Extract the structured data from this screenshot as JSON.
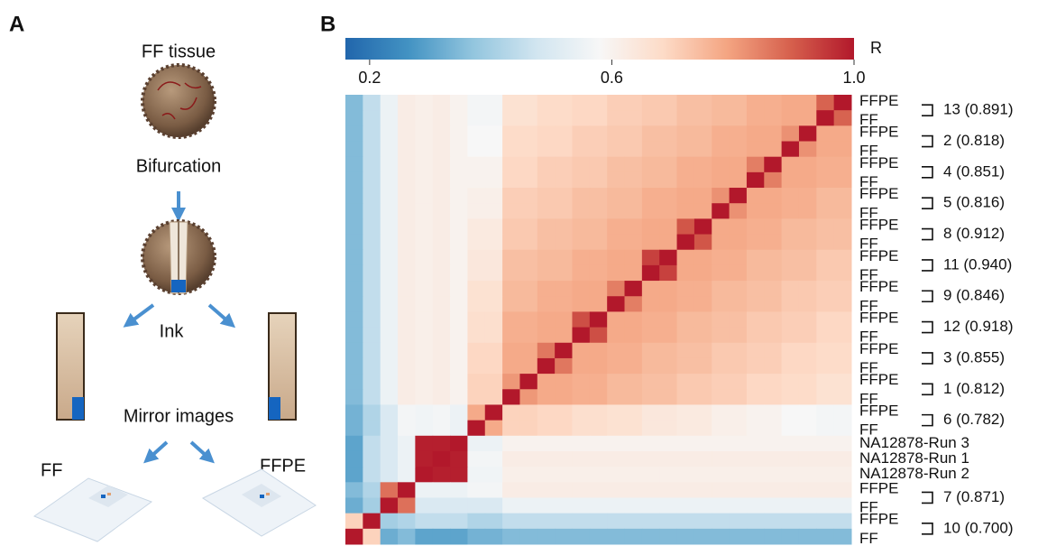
{
  "panel_a": {
    "label": "A",
    "tissue": "FF tissue",
    "step": "Bifurcation",
    "ink": "Ink",
    "mirror": "Mirror images",
    "left_slide": "FF",
    "right_slide": "FFPE"
  },
  "chart_data": {
    "type": "heatmap",
    "panel_label": "B",
    "colorbar_title": "R",
    "zlim": [
      0.16,
      1
    ],
    "zticks": [
      0.2,
      0.6,
      {
        "value": 1,
        "label": "1.0"
      }
    ],
    "colorscale": [
      "#2166ac",
      "#4393c3",
      "#92c5de",
      "#d1e5f0",
      "#f7f7f7",
      "#fddbc7",
      "#f4a582",
      "#d6604d",
      "#b2182b"
    ],
    "row_labels": [
      "FFPE",
      "FF",
      "FFPE",
      "FF",
      "FFPE",
      "FF",
      "FFPE",
      "FF",
      "FFPE",
      "FF",
      "FFPE",
      "FF",
      "FFPE",
      "FF",
      "FFPE",
      "FF",
      "FFPE",
      "FF",
      "FFPE",
      "FF",
      "FFPE",
      "FF",
      "NA12878-Run 3",
      "NA12878-Run 1",
      "NA12878-Run 2",
      "FFPE",
      "FF",
      "FFPE",
      "FF"
    ],
    "pair_labels": [
      "13 (0.891)",
      "2 (0.818)",
      "4 (0.851)",
      "5 (0.816)",
      "8 (0.912)",
      "11 (0.940)",
      "9 (0.846)",
      "12 (0.918)",
      "3 (0.855)",
      "1 (0.812)",
      "6 (0.782)",
      "7 (0.871)",
      "10 (0.700)"
    ],
    "values": [
      [
        0.35,
        0.45,
        0.55,
        0.62,
        0.61,
        0.62,
        0.6,
        0.57,
        0.57,
        0.66,
        0.66,
        0.68,
        0.68,
        0.69,
        0.69,
        0.71,
        0.71,
        0.72,
        0.72,
        0.74,
        0.74,
        0.75,
        0.75,
        0.77,
        0.77,
        0.78,
        0.78,
        0.89,
        1
      ],
      [
        0.35,
        0.45,
        0.55,
        0.62,
        0.61,
        0.62,
        0.6,
        0.57,
        0.57,
        0.66,
        0.66,
        0.68,
        0.68,
        0.69,
        0.69,
        0.71,
        0.71,
        0.72,
        0.72,
        0.74,
        0.74,
        0.75,
        0.75,
        0.77,
        0.77,
        0.78,
        0.78,
        1,
        0.89
      ],
      [
        0.35,
        0.45,
        0.55,
        0.62,
        0.61,
        0.62,
        0.6,
        0.58,
        0.58,
        0.68,
        0.68,
        0.69,
        0.69,
        0.71,
        0.71,
        0.72,
        0.72,
        0.74,
        0.74,
        0.75,
        0.75,
        0.77,
        0.77,
        0.78,
        0.78,
        0.82,
        1,
        0.78,
        0.78
      ],
      [
        0.35,
        0.45,
        0.55,
        0.62,
        0.61,
        0.62,
        0.6,
        0.58,
        0.58,
        0.68,
        0.68,
        0.69,
        0.69,
        0.71,
        0.71,
        0.72,
        0.72,
        0.74,
        0.74,
        0.75,
        0.75,
        0.77,
        0.77,
        0.78,
        0.78,
        1,
        0.82,
        0.78,
        0.78
      ],
      [
        0.35,
        0.45,
        0.55,
        0.62,
        0.61,
        0.62,
        0.6,
        0.6,
        0.6,
        0.69,
        0.69,
        0.71,
        0.71,
        0.72,
        0.72,
        0.74,
        0.74,
        0.75,
        0.75,
        0.77,
        0.77,
        0.78,
        0.78,
        0.85,
        1,
        0.78,
        0.78,
        0.77,
        0.77
      ],
      [
        0.35,
        0.45,
        0.55,
        0.62,
        0.61,
        0.62,
        0.6,
        0.6,
        0.6,
        0.69,
        0.69,
        0.71,
        0.71,
        0.72,
        0.72,
        0.74,
        0.74,
        0.75,
        0.75,
        0.77,
        0.77,
        0.78,
        0.78,
        1,
        0.85,
        0.78,
        0.78,
        0.77,
        0.77
      ],
      [
        0.35,
        0.45,
        0.55,
        0.62,
        0.61,
        0.62,
        0.6,
        0.61,
        0.61,
        0.71,
        0.71,
        0.72,
        0.72,
        0.74,
        0.74,
        0.75,
        0.75,
        0.77,
        0.77,
        0.78,
        0.78,
        0.82,
        1,
        0.78,
        0.78,
        0.77,
        0.77,
        0.75,
        0.75
      ],
      [
        0.35,
        0.45,
        0.55,
        0.62,
        0.61,
        0.62,
        0.6,
        0.61,
        0.61,
        0.71,
        0.71,
        0.72,
        0.72,
        0.74,
        0.74,
        0.75,
        0.75,
        0.77,
        0.77,
        0.78,
        0.78,
        1,
        0.82,
        0.78,
        0.78,
        0.77,
        0.77,
        0.75,
        0.75
      ],
      [
        0.35,
        0.45,
        0.55,
        0.62,
        0.61,
        0.62,
        0.6,
        0.63,
        0.63,
        0.72,
        0.72,
        0.74,
        0.74,
        0.75,
        0.75,
        0.77,
        0.77,
        0.78,
        0.78,
        0.91,
        1,
        0.78,
        0.78,
        0.77,
        0.77,
        0.75,
        0.75,
        0.74,
        0.74
      ],
      [
        0.35,
        0.45,
        0.55,
        0.62,
        0.61,
        0.62,
        0.6,
        0.63,
        0.63,
        0.72,
        0.72,
        0.74,
        0.74,
        0.75,
        0.75,
        0.77,
        0.77,
        0.78,
        0.78,
        1,
        0.91,
        0.78,
        0.78,
        0.77,
        0.77,
        0.75,
        0.75,
        0.74,
        0.74
      ],
      [
        0.35,
        0.45,
        0.55,
        0.62,
        0.61,
        0.62,
        0.6,
        0.64,
        0.64,
        0.74,
        0.74,
        0.75,
        0.75,
        0.77,
        0.77,
        0.78,
        0.78,
        0.94,
        1,
        0.78,
        0.78,
        0.77,
        0.77,
        0.75,
        0.75,
        0.74,
        0.74,
        0.72,
        0.72
      ],
      [
        0.35,
        0.45,
        0.55,
        0.62,
        0.61,
        0.62,
        0.6,
        0.64,
        0.64,
        0.74,
        0.74,
        0.75,
        0.75,
        0.77,
        0.77,
        0.78,
        0.78,
        1,
        0.94,
        0.78,
        0.78,
        0.77,
        0.77,
        0.75,
        0.75,
        0.74,
        0.74,
        0.72,
        0.72
      ],
      [
        0.35,
        0.45,
        0.55,
        0.62,
        0.61,
        0.62,
        0.6,
        0.66,
        0.66,
        0.75,
        0.75,
        0.77,
        0.77,
        0.78,
        0.78,
        0.85,
        1,
        0.78,
        0.78,
        0.77,
        0.77,
        0.75,
        0.75,
        0.74,
        0.74,
        0.72,
        0.72,
        0.71,
        0.71
      ],
      [
        0.35,
        0.45,
        0.55,
        0.62,
        0.61,
        0.62,
        0.6,
        0.66,
        0.66,
        0.75,
        0.75,
        0.77,
        0.77,
        0.78,
        0.78,
        1,
        0.85,
        0.78,
        0.78,
        0.77,
        0.77,
        0.75,
        0.75,
        0.74,
        0.74,
        0.72,
        0.72,
        0.71,
        0.71
      ],
      [
        0.35,
        0.45,
        0.55,
        0.62,
        0.61,
        0.62,
        0.6,
        0.67,
        0.67,
        0.77,
        0.77,
        0.78,
        0.78,
        0.92,
        1,
        0.78,
        0.78,
        0.77,
        0.77,
        0.75,
        0.75,
        0.74,
        0.74,
        0.72,
        0.72,
        0.71,
        0.71,
        0.69,
        0.69
      ],
      [
        0.35,
        0.45,
        0.55,
        0.62,
        0.61,
        0.62,
        0.6,
        0.67,
        0.67,
        0.77,
        0.77,
        0.78,
        0.78,
        1,
        0.92,
        0.78,
        0.78,
        0.77,
        0.77,
        0.75,
        0.75,
        0.74,
        0.74,
        0.72,
        0.72,
        0.71,
        0.71,
        0.69,
        0.69
      ],
      [
        0.35,
        0.45,
        0.55,
        0.62,
        0.61,
        0.62,
        0.6,
        0.69,
        0.69,
        0.78,
        0.78,
        0.86,
        1,
        0.78,
        0.78,
        0.77,
        0.77,
        0.75,
        0.75,
        0.74,
        0.74,
        0.72,
        0.72,
        0.71,
        0.71,
        0.69,
        0.69,
        0.68,
        0.68
      ],
      [
        0.35,
        0.45,
        0.55,
        0.62,
        0.61,
        0.62,
        0.6,
        0.69,
        0.69,
        0.78,
        0.78,
        1,
        0.86,
        0.78,
        0.78,
        0.77,
        0.77,
        0.75,
        0.75,
        0.74,
        0.74,
        0.72,
        0.72,
        0.71,
        0.71,
        0.69,
        0.69,
        0.68,
        0.68
      ],
      [
        0.35,
        0.45,
        0.55,
        0.62,
        0.61,
        0.62,
        0.6,
        0.7,
        0.7,
        0.81,
        1,
        0.78,
        0.78,
        0.77,
        0.77,
        0.75,
        0.75,
        0.74,
        0.74,
        0.72,
        0.72,
        0.71,
        0.71,
        0.69,
        0.69,
        0.68,
        0.68,
        0.66,
        0.66
      ],
      [
        0.35,
        0.45,
        0.55,
        0.62,
        0.61,
        0.62,
        0.6,
        0.7,
        0.7,
        1,
        0.81,
        0.78,
        0.78,
        0.77,
        0.77,
        0.75,
        0.75,
        0.74,
        0.74,
        0.72,
        0.72,
        0.71,
        0.71,
        0.69,
        0.69,
        0.68,
        0.68,
        0.66,
        0.66
      ],
      [
        0.33,
        0.42,
        0.5,
        0.57,
        0.56,
        0.57,
        0.55,
        0.78,
        1,
        0.7,
        0.7,
        0.69,
        0.69,
        0.67,
        0.67,
        0.66,
        0.66,
        0.64,
        0.64,
        0.63,
        0.63,
        0.61,
        0.61,
        0.6,
        0.6,
        0.58,
        0.58,
        0.57,
        0.57
      ],
      [
        0.33,
        0.42,
        0.5,
        0.57,
        0.56,
        0.57,
        0.55,
        1,
        0.78,
        0.7,
        0.7,
        0.69,
        0.69,
        0.67,
        0.67,
        0.66,
        0.66,
        0.64,
        0.64,
        0.63,
        0.63,
        0.61,
        0.61,
        0.6,
        0.6,
        0.58,
        0.58,
        0.57,
        0.57
      ],
      [
        0.3,
        0.45,
        0.5,
        0.55,
        0.99,
        0.99,
        1,
        0.55,
        0.55,
        0.6,
        0.6,
        0.6,
        0.6,
        0.6,
        0.6,
        0.6,
        0.6,
        0.6,
        0.6,
        0.6,
        0.6,
        0.6,
        0.6,
        0.6,
        0.6,
        0.6,
        0.6,
        0.6,
        0.6
      ],
      [
        0.3,
        0.45,
        0.5,
        0.55,
        0.99,
        1,
        0.99,
        0.57,
        0.57,
        0.62,
        0.62,
        0.62,
        0.62,
        0.62,
        0.62,
        0.62,
        0.62,
        0.62,
        0.62,
        0.62,
        0.62,
        0.62,
        0.62,
        0.62,
        0.62,
        0.62,
        0.62,
        0.62,
        0.62
      ],
      [
        0.3,
        0.45,
        0.5,
        0.55,
        1,
        0.99,
        0.99,
        0.56,
        0.56,
        0.61,
        0.61,
        0.61,
        0.61,
        0.61,
        0.61,
        0.61,
        0.61,
        0.61,
        0.61,
        0.61,
        0.61,
        0.61,
        0.61,
        0.61,
        0.61,
        0.61,
        0.61,
        0.61,
        0.61
      ],
      [
        0.35,
        0.42,
        0.87,
        1,
        0.55,
        0.55,
        0.55,
        0.57,
        0.57,
        0.62,
        0.62,
        0.62,
        0.62,
        0.62,
        0.62,
        0.62,
        0.62,
        0.62,
        0.62,
        0.62,
        0.62,
        0.62,
        0.62,
        0.62,
        0.62,
        0.62,
        0.62,
        0.62,
        0.62
      ],
      [
        0.32,
        0.4,
        1,
        0.87,
        0.5,
        0.5,
        0.5,
        0.5,
        0.5,
        0.55,
        0.55,
        0.55,
        0.55,
        0.55,
        0.55,
        0.55,
        0.55,
        0.55,
        0.55,
        0.55,
        0.55,
        0.55,
        0.55,
        0.55,
        0.55,
        0.55,
        0.55,
        0.55,
        0.55
      ],
      [
        0.7,
        1,
        0.4,
        0.42,
        0.45,
        0.45,
        0.45,
        0.42,
        0.42,
        0.45,
        0.45,
        0.45,
        0.45,
        0.45,
        0.45,
        0.45,
        0.45,
        0.45,
        0.45,
        0.45,
        0.45,
        0.45,
        0.45,
        0.45,
        0.45,
        0.45,
        0.45,
        0.45,
        0.45
      ],
      [
        1,
        0.7,
        0.32,
        0.35,
        0.3,
        0.3,
        0.3,
        0.33,
        0.33,
        0.35,
        0.35,
        0.35,
        0.35,
        0.35,
        0.35,
        0.35,
        0.35,
        0.35,
        0.35,
        0.35,
        0.35,
        0.35,
        0.35,
        0.35,
        0.35,
        0.35,
        0.35,
        0.35,
        0.35
      ]
    ]
  }
}
